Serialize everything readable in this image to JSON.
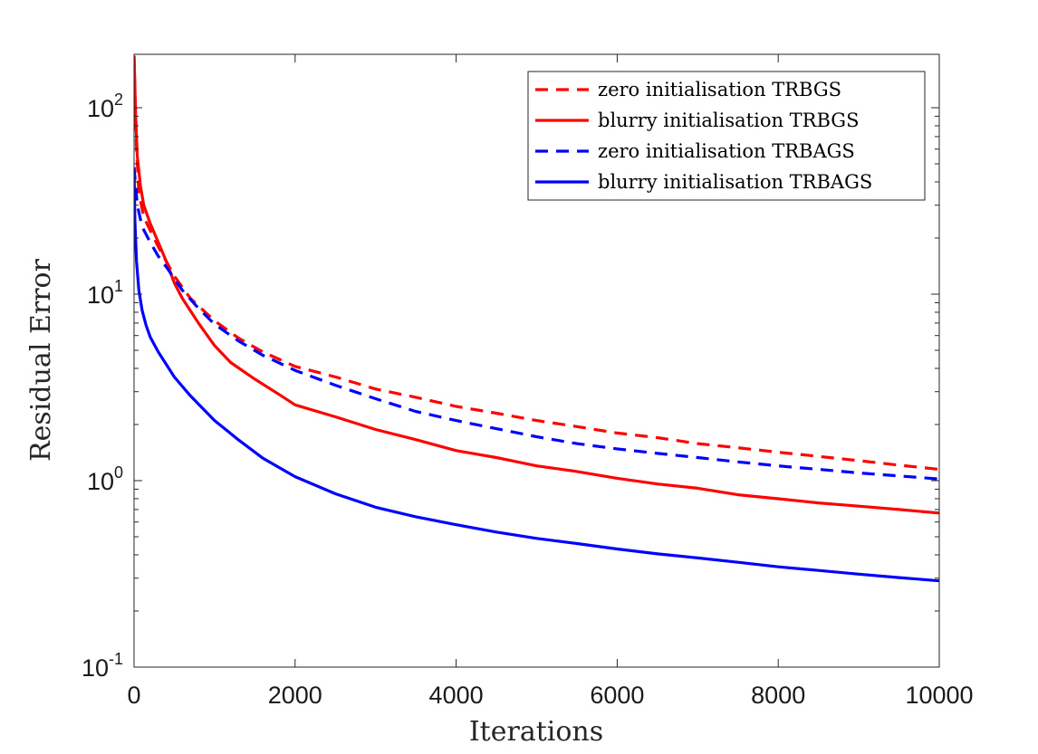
{
  "chart_data": {
    "type": "line",
    "title": "",
    "xlabel": "Iterations",
    "ylabel": "Residual Error",
    "xlim": [
      0,
      10000
    ],
    "ylim": [
      0.1,
      200
    ],
    "yscale": "log",
    "grid": false,
    "legend_position": "top-right",
    "x_ticks": [
      0,
      2000,
      4000,
      6000,
      8000,
      10000
    ],
    "x_tick_labels": [
      "0",
      "2000",
      "4000",
      "6000",
      "8000",
      "10000"
    ],
    "y_ticks": [
      0.1,
      1,
      10,
      100
    ],
    "y_tick_labels": [
      {
        "base": "10",
        "exp": "-1"
      },
      {
        "base": "10",
        "exp": "0"
      },
      {
        "base": "10",
        "exp": "1"
      },
      {
        "base": "10",
        "exp": "2"
      }
    ],
    "series": [
      {
        "name": "zero initialisation TRBGS",
        "color": "#ff0000",
        "style": "dashed",
        "points": [
          [
            0,
            190
          ],
          [
            30,
            60
          ],
          [
            60,
            35
          ],
          [
            120,
            26
          ],
          [
            200,
            22
          ],
          [
            300,
            18
          ],
          [
            400,
            15
          ],
          [
            500,
            12.5
          ],
          [
            700,
            9.5
          ],
          [
            1000,
            7.2
          ],
          [
            1300,
            5.8
          ],
          [
            1600,
            4.9
          ],
          [
            2000,
            4.1
          ],
          [
            2500,
            3.6
          ],
          [
            3000,
            3.1
          ],
          [
            3500,
            2.8
          ],
          [
            4000,
            2.5
          ],
          [
            4500,
            2.3
          ],
          [
            5000,
            2.1
          ],
          [
            5500,
            1.95
          ],
          [
            6000,
            1.8
          ],
          [
            6500,
            1.7
          ],
          [
            7000,
            1.58
          ],
          [
            7500,
            1.5
          ],
          [
            8000,
            1.42
          ],
          [
            8500,
            1.35
          ],
          [
            9000,
            1.28
          ],
          [
            9500,
            1.21
          ],
          [
            10000,
            1.15
          ]
        ]
      },
      {
        "name": "blurry initialisation TRBGS",
        "color": "#ff0000",
        "style": "solid",
        "points": [
          [
            0,
            190
          ],
          [
            20,
            90
          ],
          [
            40,
            55
          ],
          [
            80,
            38
          ],
          [
            120,
            30
          ],
          [
            200,
            24
          ],
          [
            300,
            19
          ],
          [
            400,
            15
          ],
          [
            500,
            11.5
          ],
          [
            600,
            9.5
          ],
          [
            800,
            7
          ],
          [
            1000,
            5.3
          ],
          [
            1200,
            4.3
          ],
          [
            1500,
            3.5
          ],
          [
            1800,
            2.9
          ],
          [
            2000,
            2.55
          ],
          [
            2500,
            2.2
          ],
          [
            3000,
            1.88
          ],
          [
            3500,
            1.66
          ],
          [
            4000,
            1.45
          ],
          [
            4500,
            1.33
          ],
          [
            5000,
            1.2
          ],
          [
            5500,
            1.12
          ],
          [
            6000,
            1.03
          ],
          [
            6500,
            0.96
          ],
          [
            7000,
            0.91
          ],
          [
            7500,
            0.84
          ],
          [
            8000,
            0.8
          ],
          [
            8500,
            0.76
          ],
          [
            9000,
            0.73
          ],
          [
            9500,
            0.7
          ],
          [
            10000,
            0.67
          ]
        ]
      },
      {
        "name": "zero initialisation TRBAGS",
        "color": "#0000ff",
        "style": "dashed",
        "points": [
          [
            0,
            48
          ],
          [
            40,
            30
          ],
          [
            100,
            23
          ],
          [
            200,
            19
          ],
          [
            300,
            16
          ],
          [
            400,
            14
          ],
          [
            600,
            10.5
          ],
          [
            800,
            8.4
          ],
          [
            1000,
            6.9
          ],
          [
            1300,
            5.6
          ],
          [
            1600,
            4.7
          ],
          [
            2000,
            3.9
          ],
          [
            2500,
            3.25
          ],
          [
            3000,
            2.75
          ],
          [
            3500,
            2.35
          ],
          [
            4000,
            2.1
          ],
          [
            4500,
            1.9
          ],
          [
            5000,
            1.72
          ],
          [
            5500,
            1.58
          ],
          [
            6000,
            1.48
          ],
          [
            6500,
            1.4
          ],
          [
            7000,
            1.33
          ],
          [
            7500,
            1.26
          ],
          [
            8000,
            1.2
          ],
          [
            8500,
            1.15
          ],
          [
            9000,
            1.1
          ],
          [
            9500,
            1.06
          ],
          [
            10000,
            1.02
          ]
        ]
      },
      {
        "name": "blurry initialisation TRBAGS",
        "color": "#0000ff",
        "style": "solid",
        "points": [
          [
            0,
            48
          ],
          [
            10,
            25
          ],
          [
            30,
            15
          ],
          [
            60,
            10.5
          ],
          [
            100,
            8.2
          ],
          [
            150,
            6.8
          ],
          [
            200,
            5.9
          ],
          [
            300,
            4.9
          ],
          [
            400,
            4.2
          ],
          [
            500,
            3.6
          ],
          [
            700,
            2.85
          ],
          [
            1000,
            2.1
          ],
          [
            1300,
            1.65
          ],
          [
            1600,
            1.32
          ],
          [
            2000,
            1.05
          ],
          [
            2500,
            0.85
          ],
          [
            3000,
            0.72
          ],
          [
            3500,
            0.64
          ],
          [
            4000,
            0.58
          ],
          [
            4500,
            0.53
          ],
          [
            5000,
            0.49
          ],
          [
            5500,
            0.46
          ],
          [
            6000,
            0.43
          ],
          [
            6500,
            0.405
          ],
          [
            7000,
            0.385
          ],
          [
            7500,
            0.365
          ],
          [
            8000,
            0.345
          ],
          [
            8500,
            0.33
          ],
          [
            9000,
            0.315
          ],
          [
            9500,
            0.302
          ],
          [
            10000,
            0.29
          ]
        ]
      }
    ]
  }
}
